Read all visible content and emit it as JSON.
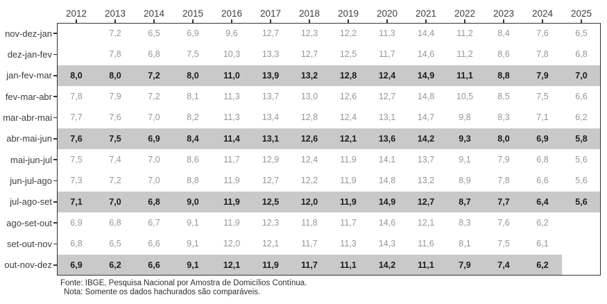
{
  "chart_data": {
    "type": "table",
    "title": "",
    "xlabel": "",
    "ylabel": "",
    "categories": [
      "2012",
      "2013",
      "2014",
      "2015",
      "2016",
      "2017",
      "2018",
      "2019",
      "2020",
      "2021",
      "2022",
      "2023",
      "2024",
      "2025"
    ],
    "rows": [
      {
        "label": "nov-dez-jan",
        "highlight": false,
        "highlight_span": 14,
        "values": [
          "",
          "7,2",
          "6,5",
          "6,9",
          "9,6",
          "12,7",
          "12,3",
          "12,2",
          "11,3",
          "14,4",
          "11,2",
          "8,4",
          "7,6",
          "6,5"
        ]
      },
      {
        "label": "dez-jan-fev",
        "highlight": false,
        "highlight_span": 14,
        "values": [
          "",
          "7,8",
          "6,8",
          "7,5",
          "10,3",
          "13,3",
          "12,7",
          "12,5",
          "11,7",
          "14,6",
          "11,2",
          "8,6",
          "7,8",
          "6,8"
        ]
      },
      {
        "label": "jan-fev-mar",
        "highlight": true,
        "highlight_span": 14,
        "values": [
          "8,0",
          "8,0",
          "7,2",
          "8,0",
          "11,0",
          "13,9",
          "13,2",
          "12,8",
          "12,4",
          "14,9",
          "11,1",
          "8,8",
          "7,9",
          "7,0"
        ]
      },
      {
        "label": "fev-mar-abr",
        "highlight": false,
        "highlight_span": 14,
        "values": [
          "7,8",
          "7,9",
          "7,2",
          "8,1",
          "11,3",
          "13,7",
          "13,0",
          "12,6",
          "12,7",
          "14,8",
          "10,5",
          "8,5",
          "7,5",
          "6,6"
        ]
      },
      {
        "label": "mar-abr-mai",
        "highlight": false,
        "highlight_span": 14,
        "values": [
          "7,7",
          "7,6",
          "7,0",
          "8,2",
          "11,3",
          "13,4",
          "12,8",
          "12,4",
          "13,1",
          "14,7",
          "9,8",
          "8,3",
          "7,1",
          "6,2"
        ]
      },
      {
        "label": "abr-mai-jun",
        "highlight": true,
        "highlight_span": 14,
        "values": [
          "7,6",
          "7,5",
          "6,9",
          "8,4",
          "11,4",
          "13,1",
          "12,6",
          "12,1",
          "13,6",
          "14,2",
          "9,3",
          "8,0",
          "6,9",
          "5,8"
        ]
      },
      {
        "label": "mai-jun-jul",
        "highlight": false,
        "highlight_span": 14,
        "values": [
          "7,5",
          "7,4",
          "7,0",
          "8,6",
          "11,7",
          "12,9",
          "12,4",
          "11,9",
          "14,1",
          "13,7",
          "9,1",
          "7,9",
          "6,8",
          "5,6"
        ]
      },
      {
        "label": "jun-jul-ago",
        "highlight": false,
        "highlight_span": 14,
        "values": [
          "7,3",
          "7,2",
          "7,0",
          "8,8",
          "11,9",
          "12,7",
          "12,2",
          "11,9",
          "14,8",
          "13,2",
          "8,9",
          "7,8",
          "6,6",
          "5,6"
        ]
      },
      {
        "label": "jul-ago-set",
        "highlight": true,
        "highlight_span": 14,
        "values": [
          "7,1",
          "7,0",
          "6,8",
          "9,0",
          "11,9",
          "12,5",
          "12,0",
          "11,9",
          "14,9",
          "12,7",
          "8,7",
          "7,7",
          "6,4",
          "5,6"
        ]
      },
      {
        "label": "ago-set-out",
        "highlight": false,
        "highlight_span": 14,
        "values": [
          "6,9",
          "6,8",
          "6,7",
          "9,1",
          "11,9",
          "12,3",
          "11,8",
          "11,7",
          "14,6",
          "12,1",
          "8,3",
          "7,6",
          "6,2",
          ""
        ]
      },
      {
        "label": "set-out-nov",
        "highlight": false,
        "highlight_span": 14,
        "values": [
          "6,8",
          "6,5",
          "6,6",
          "9,1",
          "12,0",
          "12,1",
          "11,7",
          "11,3",
          "14,3",
          "11,6",
          "8,1",
          "7,5",
          "6,1",
          ""
        ]
      },
      {
        "label": "out-nov-dez",
        "highlight": true,
        "highlight_span": 13,
        "values": [
          "6,9",
          "6,2",
          "6,6",
          "9,1",
          "12,1",
          "11,9",
          "11,7",
          "11,1",
          "14,2",
          "11,1",
          "7,9",
          "7,4",
          "6,2",
          ""
        ]
      }
    ],
    "legend_position": "none",
    "grid": false
  },
  "footer": {
    "line1": "Fonte: IBGE, Pesquisa Nacional por Amostra de Domicílios Contínua.",
    "line2": "Nota: Somente os dados hachurados são comparáveis."
  },
  "colors": {
    "highlight_band": "#c9c9c9",
    "value_text": "#969696",
    "highlight_value_text": "#1c1c1c",
    "axis_text": "#3d3d3d",
    "frame": "#333333",
    "footer_text": "#2e2e2e"
  }
}
